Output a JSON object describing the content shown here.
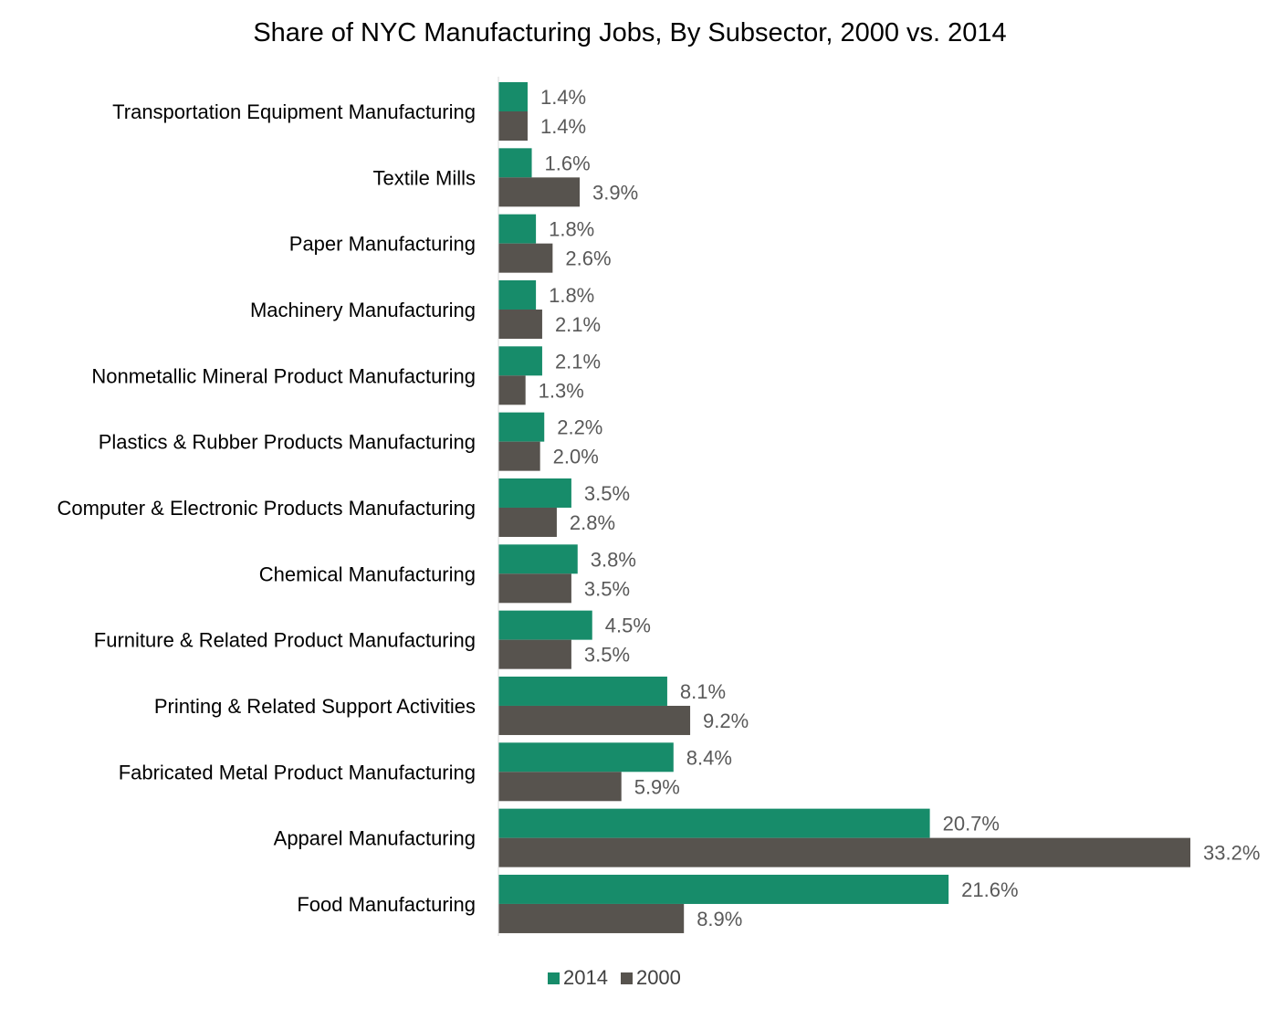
{
  "chart_data": {
    "type": "bar",
    "orientation": "horizontal",
    "title": "Share of NYC Manufacturing Jobs, By Subsector, 2000 vs. 2014",
    "xlabel": "",
    "ylabel": "",
    "xlim": [
      0,
      33.2
    ],
    "grid": false,
    "legend_position": "bottom",
    "categories": [
      "Transportation Equipment Manufacturing",
      "Textile Mills",
      "Paper Manufacturing",
      "Machinery Manufacturing",
      "Nonmetallic Mineral Product Manufacturing",
      "Plastics & Rubber Products Manufacturing",
      "Computer & Electronic Products Manufacturing",
      "Chemical Manufacturing",
      "Furniture & Related Product Manufacturing",
      "Printing & Related Support Activities",
      "Fabricated Metal Product Manufacturing",
      "Apparel Manufacturing",
      "Food Manufacturing"
    ],
    "series": [
      {
        "name": "2014",
        "color": "#178C6A",
        "values": [
          1.4,
          1.6,
          1.8,
          1.8,
          2.1,
          2.2,
          3.5,
          3.8,
          4.5,
          8.1,
          8.4,
          20.7,
          21.6
        ],
        "labels": [
          "1.4%",
          "1.6%",
          "1.8%",
          "1.8%",
          "2.1%",
          "2.2%",
          "3.5%",
          "3.8%",
          "4.5%",
          "8.1%",
          "8.4%",
          "20.7%",
          "21.6%"
        ]
      },
      {
        "name": "2000",
        "color": "#57534E",
        "values": [
          1.4,
          3.9,
          2.6,
          2.1,
          1.3,
          2.0,
          2.8,
          3.5,
          3.5,
          9.2,
          5.9,
          33.2,
          8.9
        ],
        "labels": [
          "1.4%",
          "3.9%",
          "2.6%",
          "2.1%",
          "1.3%",
          "2.0%",
          "2.8%",
          "3.5%",
          "3.5%",
          "9.2%",
          "5.9%",
          "33.2%",
          "8.9%"
        ]
      }
    ]
  }
}
